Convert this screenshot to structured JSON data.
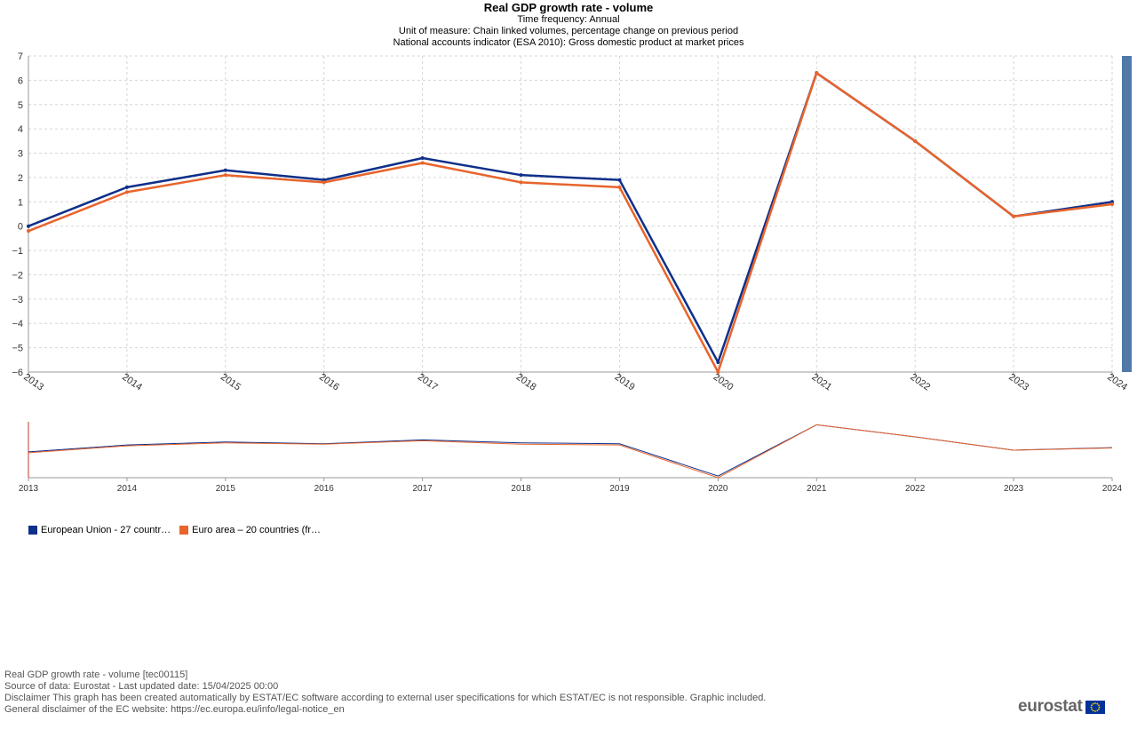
{
  "chart": {
    "title": "Real GDP growth rate - volume",
    "subtitles": [
      "Time frequency:  Annual",
      "Unit of measure:  Chain linked volumes, percentage change on previous period",
      "National accounts indicator (ESA 2010):  Gross domestic product at market prices"
    ]
  },
  "chart_data": {
    "type": "line",
    "title": "Real GDP growth rate - volume",
    "x": [
      "2013",
      "2014",
      "2015",
      "2016",
      "2017",
      "2018",
      "2019",
      "2020",
      "2021",
      "2022",
      "2023",
      "2024"
    ],
    "ylim": [
      -6,
      7
    ],
    "yticks": [
      "7",
      "6",
      "5",
      "4",
      "3",
      "2",
      "1",
      "0",
      "−1",
      "−2",
      "−3",
      "−4",
      "−5",
      "−6"
    ],
    "grid": true,
    "legend": "bottom-left",
    "series": [
      {
        "name": "European Union - 27 countr…",
        "color": "#0e2f8a",
        "values": [
          0.0,
          1.6,
          2.3,
          1.9,
          2.8,
          2.1,
          1.9,
          -5.6,
          6.3,
          3.5,
          0.4,
          1.0
        ]
      },
      {
        "name": "Euro area – 20 countries (fr…",
        "color": "#e8642c",
        "values": [
          -0.2,
          1.4,
          2.1,
          1.8,
          2.6,
          1.8,
          1.6,
          -6.0,
          6.3,
          3.5,
          0.4,
          0.9
        ]
      }
    ]
  },
  "legend": {
    "items": [
      {
        "label": "European Union - 27 countr…",
        "color": "#0e2f8a"
      },
      {
        "label": "Euro area – 20 countries (fr…",
        "color": "#e8642c"
      }
    ]
  },
  "footer": {
    "lines": [
      "Real GDP growth rate - volume [tec00115]",
      "Source of data: Eurostat - Last updated date: 15/04/2025 00:00",
      "Disclaimer This graph has been created automatically by ESTAT/EC software according to external user specifications for which ESTAT/EC is not responsible. Graphic included.",
      "General disclaimer of the EC website: https://ec.europa.eu/info/legal-notice_en"
    ]
  },
  "brand": {
    "name": "eurostat"
  }
}
